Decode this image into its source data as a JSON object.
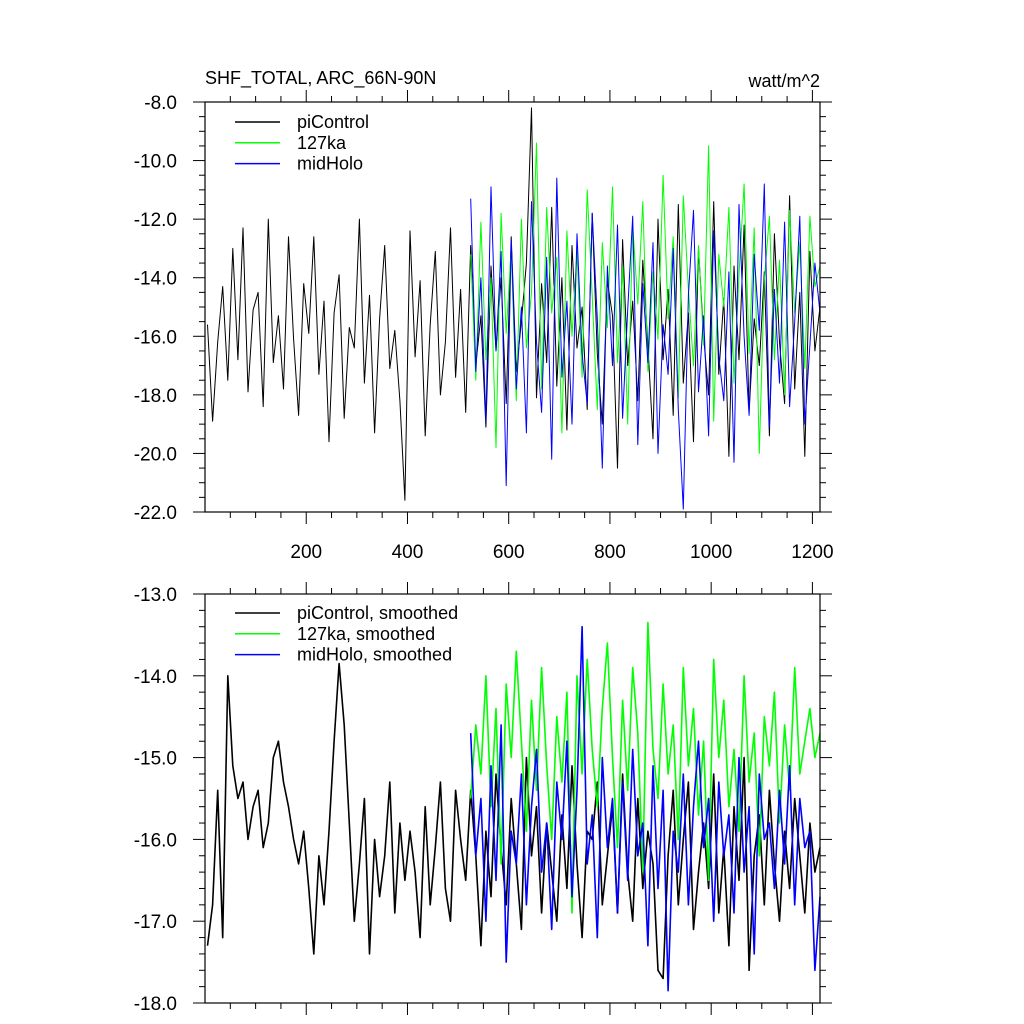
{
  "colors": {
    "piControl": "#000000",
    "127ka": "#00ff00",
    "midHolo": "#0000ff",
    "axis": "#000000"
  },
  "chart_data": [
    {
      "type": "line",
      "title": "SHF_TOTAL, ARC_66N-90N",
      "units": "watt/m^2",
      "xlabel": "",
      "ylabel": "",
      "xlim": [
        0,
        1215
      ],
      "ylim": [
        -22,
        -8
      ],
      "x_ticks": [
        200,
        400,
        600,
        800,
        1000,
        1200
      ],
      "x_tick_labels": [
        "200",
        "400",
        "600",
        "800",
        "1000",
        "1200"
      ],
      "y_ticks": [
        -8,
        -10,
        -12,
        -14,
        -16,
        -18,
        -20,
        -22
      ],
      "y_tick_labels": [
        "-8.0",
        "-10.0",
        "-12.0",
        "-14.0",
        "-16.0",
        "-18.0",
        "-20.0",
        "-22.0"
      ],
      "y_minor_step": 0.5,
      "x_minor_step": 50,
      "legend_position": "top-left",
      "grid": false,
      "series": [
        {
          "name": "piControl",
          "color_key": "piControl",
          "x_start": 5,
          "x_step": 10,
          "values": [
            -15.6,
            -18.9,
            -16.2,
            -14.3,
            -17.5,
            -13.0,
            -16.8,
            -12.3,
            -17.9,
            -15.1,
            -14.5,
            -18.4,
            -12.0,
            -16.9,
            -15.3,
            -17.8,
            -12.6,
            -16.1,
            -18.7,
            -14.2,
            -15.9,
            -12.6,
            -17.3,
            -14.8,
            -19.6,
            -15.2,
            -13.9,
            -18.8,
            -15.7,
            -16.4,
            -12.0,
            -17.6,
            -14.6,
            -19.3,
            -15.4,
            -12.9,
            -17.1,
            -15.8,
            -18.2,
            -21.6,
            -12.4,
            -16.7,
            -14.1,
            -19.4,
            -15.6,
            -13.1,
            -18.0,
            -16.2,
            -12.3,
            -17.4,
            -14.4,
            -18.6,
            -12.9,
            -17.0,
            -15.3,
            -19.1,
            -13.6,
            -16.5,
            -14.0,
            -18.3,
            -12.6,
            -17.2,
            -15.5,
            -13.5,
            -8.2,
            -18.1,
            -14.2,
            -16.9,
            -11.6,
            -17.7,
            -14.0,
            -19.2,
            -12.9,
            -16.4,
            -15.0,
            -18.5,
            -11.8,
            -16.6,
            -19.0,
            -14.1,
            -15.3,
            -20.5,
            -12.7,
            -17.0,
            -14.8,
            -18.2,
            -13.4,
            -16.3,
            -19.5,
            -12.0,
            -16.8,
            -14.4,
            -18.7,
            -11.5,
            -17.6,
            -15.2,
            -19.6,
            -13.0,
            -16.0,
            -18.0,
            -11.4,
            -17.3,
            -14.7,
            -20.1,
            -13.6,
            -16.8,
            -12.2,
            -18.6,
            -15.4,
            -17.0,
            -13.8,
            -19.4,
            -12.5,
            -16.2,
            -18.3,
            -11.2,
            -17.8,
            -14.5,
            -20.1,
            -13.1,
            -16.5,
            -15.0
          ]
        },
        {
          "name": "127ka",
          "color_key": "127ka",
          "x_start": 525,
          "x_step": 10,
          "values": [
            -13.2,
            -17.5,
            -12.1,
            -16.8,
            -14.0,
            -19.8,
            -11.8,
            -15.9,
            -13.0,
            -18.2,
            -12.0,
            -16.4,
            -14.5,
            -9.4,
            -17.8,
            -11.6,
            -15.2,
            -13.3,
            -19.3,
            -12.4,
            -16.0,
            -13.1,
            -17.4,
            -11.0,
            -14.6,
            -18.5,
            -12.8,
            -15.7,
            -10.9,
            -16.9,
            -13.6,
            -19.0,
            -12.2,
            -14.9,
            -11.4,
            -17.2,
            -13.8,
            -16.1,
            -10.5,
            -15.4,
            -12.6,
            -18.1,
            -11.2,
            -14.4,
            -17.0,
            -12.9,
            -16.3,
            -9.5,
            -18.9,
            -13.2,
            -15.0,
            -11.6,
            -17.6,
            -13.9,
            -10.8,
            -16.6,
            -12.3,
            -20.0,
            -14.1,
            -11.9,
            -16.8,
            -13.4,
            -18.0,
            -11.7,
            -15.2,
            -12.8,
            -17.1,
            -11.9,
            -14.3,
            -13.6
          ]
        },
        {
          "name": "midHolo",
          "color_key": "midHolo",
          "x_start": 525,
          "x_step": 10,
          "values": [
            -11.3,
            -17.2,
            -14.0,
            -18.9,
            -10.9,
            -16.5,
            -13.1,
            -21.1,
            -12.7,
            -17.8,
            -15.0,
            -19.3,
            -11.4,
            -16.2,
            -18.6,
            -13.3,
            -20.2,
            -10.6,
            -17.4,
            -14.8,
            -19.0,
            -12.5,
            -16.6,
            -18.3,
            -11.8,
            -15.4,
            -20.5,
            -13.6,
            -17.0,
            -12.2,
            -18.8,
            -15.1,
            -11.9,
            -19.7,
            -14.2,
            -16.9,
            -12.8,
            -20.0,
            -15.6,
            -17.3,
            -13.0,
            -18.5,
            -21.9,
            -14.6,
            -11.7,
            -17.9,
            -15.3,
            -19.4,
            -12.4,
            -16.7,
            -18.2,
            -13.8,
            -20.3,
            -11.5,
            -16.0,
            -18.7,
            -13.2,
            -15.8,
            -10.8,
            -19.1,
            -14.4,
            -17.6,
            -12.1,
            -18.4,
            -15.5,
            -11.9,
            -19.0,
            -16.3,
            -13.5,
            -15.2
          ]
        }
      ]
    },
    {
      "type": "line",
      "title": "",
      "xlabel": "",
      "ylabel": "",
      "xlim": [
        0,
        1215
      ],
      "ylim": [
        -18,
        -13
      ],
      "x_ticks": [
        200,
        400,
        600,
        800,
        1000,
        1200
      ],
      "x_tick_labels": [],
      "y_ticks": [
        -13,
        -14,
        -15,
        -16,
        -17,
        -18
      ],
      "y_tick_labels": [
        "-13.0",
        "-14.0",
        "-15.0",
        "-16.0",
        "-17.0",
        "-18.0"
      ],
      "y_minor_step": 0.2,
      "x_minor_step": 50,
      "legend_position": "top-left",
      "grid": false,
      "series": [
        {
          "name": "piControl, smoothed",
          "color_key": "piControl",
          "x_start": 5,
          "x_step": 10,
          "values": [
            -17.3,
            -16.8,
            -15.4,
            -17.2,
            -14.0,
            -15.1,
            -15.5,
            -15.3,
            -16.0,
            -15.6,
            -15.4,
            -16.1,
            -15.8,
            -15.0,
            -14.8,
            -15.3,
            -15.6,
            -16.0,
            -16.3,
            -15.9,
            -16.6,
            -17.4,
            -16.2,
            -16.8,
            -15.9,
            -14.8,
            -13.85,
            -14.6,
            -15.8,
            -17.0,
            -16.3,
            -15.5,
            -17.4,
            -16.0,
            -16.7,
            -16.2,
            -15.3,
            -16.9,
            -15.8,
            -16.5,
            -15.9,
            -16.4,
            -17.2,
            -15.6,
            -16.8,
            -16.1,
            -15.3,
            -16.6,
            -17.0,
            -15.4,
            -16.0,
            -16.5,
            -15.4,
            -16.2,
            -17.3,
            -15.9,
            -16.7,
            -15.2,
            -16.1,
            -16.8,
            -15.5,
            -16.3,
            -17.1,
            -15.0,
            -16.2,
            -15.6,
            -16.9,
            -15.8,
            -16.4,
            -17.0,
            -15.7,
            -16.6,
            -15.1,
            -16.3,
            -17.2,
            -15.9,
            -16.0,
            -15.3,
            -16.8,
            -16.2,
            -15.6,
            -16.9,
            -15.2,
            -16.4,
            -17.0,
            -15.5,
            -16.6,
            -15.9,
            -16.3,
            -17.6,
            -17.7,
            -16.2,
            -15.4,
            -16.8,
            -16.0,
            -15.3,
            -17.1,
            -16.4,
            -15.8,
            -16.6,
            -15.2,
            -16.9,
            -16.1,
            -17.3,
            -15.6,
            -16.5,
            -15.0,
            -17.6,
            -16.2,
            -15.7,
            -16.8,
            -15.4,
            -16.3,
            -17.0,
            -15.9,
            -16.6,
            -15.5,
            -16.2,
            -16.9,
            -15.8,
            -16.4,
            -16.1
          ]
        },
        {
          "name": "127ka, smoothed",
          "color_key": "127ka",
          "x_start": 525,
          "x_step": 10,
          "values": [
            -15.5,
            -14.6,
            -15.2,
            -14.0,
            -15.6,
            -14.4,
            -16.3,
            -14.1,
            -15.0,
            -13.7,
            -14.8,
            -15.9,
            -14.3,
            -15.4,
            -13.9,
            -15.1,
            -16.0,
            -14.5,
            -15.3,
            -14.2,
            -16.9,
            -14.0,
            -15.2,
            -13.8,
            -14.9,
            -15.6,
            -14.4,
            -13.6,
            -15.0,
            -16.1,
            -14.3,
            -15.4,
            -13.9,
            -14.7,
            -16.4,
            -13.35,
            -14.9,
            -15.5,
            -14.1,
            -15.2,
            -14.6,
            -16.0,
            -13.9,
            -15.1,
            -14.4,
            -15.7,
            -14.8,
            -16.5,
            -13.8,
            -15.0,
            -14.3,
            -15.6,
            -14.9,
            -15.9,
            -14.0,
            -15.3,
            -14.7,
            -16.2,
            -14.5,
            -15.1,
            -14.2,
            -15.8,
            -14.6,
            -15.4,
            -13.9,
            -15.2,
            -14.8,
            -14.4,
            -15.0,
            -14.7
          ]
        },
        {
          "name": "midHolo, smoothed",
          "color_key": "midHolo",
          "x_start": 525,
          "x_step": 10,
          "values": [
            -14.7,
            -16.2,
            -15.5,
            -17.0,
            -15.1,
            -16.5,
            -14.6,
            -17.5,
            -15.9,
            -16.3,
            -15.2,
            -16.8,
            -15.6,
            -14.9,
            -16.4,
            -15.8,
            -17.1,
            -15.3,
            -16.0,
            -14.8,
            -16.7,
            -15.4,
            -13.4,
            -16.3,
            -15.7,
            -17.2,
            -15.0,
            -16.1,
            -15.5,
            -16.9,
            -15.3,
            -16.5,
            -14.9,
            -16.2,
            -15.8,
            -17.3,
            -15.1,
            -16.6,
            -15.4,
            -17.85,
            -15.9,
            -16.4,
            -15.2,
            -16.8,
            -15.6,
            -14.8,
            -16.1,
            -15.5,
            -17.0,
            -15.3,
            -16.2,
            -15.7,
            -16.9,
            -15.0,
            -16.4,
            -15.6,
            -17.4,
            -15.2,
            -16.0,
            -15.8,
            -16.6,
            -15.4,
            -16.3,
            -15.1,
            -16.8,
            -15.5,
            -16.1,
            -15.9,
            -17.6,
            -16.7
          ]
        }
      ]
    }
  ]
}
